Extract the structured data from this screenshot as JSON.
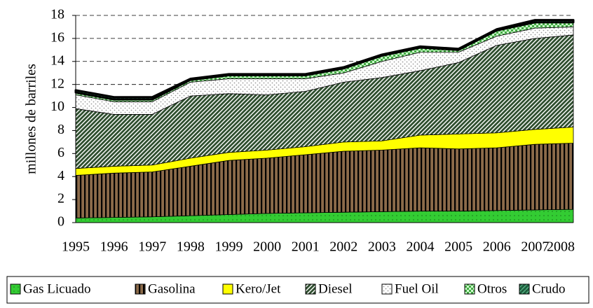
{
  "chart_data": {
    "type": "area",
    "stacked": true,
    "y_axis_label": "millones de barriles",
    "categories": [
      "1995",
      "1996",
      "1997",
      "1998",
      "1999",
      "2000",
      "2001",
      "2002",
      "2003",
      "2004",
      "2005",
      "2006",
      "2007",
      "2008"
    ],
    "ylim": [
      0,
      18
    ],
    "yticks": [
      0,
      2,
      4,
      6,
      8,
      10,
      12,
      14,
      16,
      18
    ],
    "grid": true,
    "legend": "bottom",
    "series": [
      {
        "name": "Gas Licuado",
        "color": "#33cc33",
        "values": [
          0.4,
          0.45,
          0.5,
          0.6,
          0.7,
          0.8,
          0.85,
          0.9,
          0.95,
          1.0,
          1.0,
          1.05,
          1.1,
          1.15
        ]
      },
      {
        "name": "Gasolina",
        "color": "#8c6b4a",
        "values": [
          3.7,
          3.85,
          3.9,
          4.3,
          4.7,
          4.8,
          5.05,
          5.3,
          5.35,
          5.5,
          5.4,
          5.45,
          5.7,
          5.75
        ]
      },
      {
        "name": "Kero/Jet",
        "color": "#ffff00",
        "values": [
          0.6,
          0.6,
          0.6,
          0.7,
          0.7,
          0.7,
          0.7,
          0.8,
          0.8,
          1.1,
          1.3,
          1.3,
          1.3,
          1.4
        ]
      },
      {
        "name": "Diesel",
        "color": "#2f4f2f",
        "values": [
          5.2,
          4.5,
          4.4,
          5.4,
          5.1,
          4.8,
          4.8,
          5.2,
          5.5,
          5.6,
          6.2,
          7.6,
          7.9,
          8.0
        ]
      },
      {
        "name": "Fuel Oil",
        "color": "#ffffff",
        "values": [
          1.2,
          1.1,
          1.1,
          1.2,
          1.3,
          1.4,
          1.1,
          0.8,
          1.4,
          1.6,
          0.9,
          0.8,
          0.9,
          0.7
        ]
      },
      {
        "name": "Otros",
        "color": "#44aa44",
        "values": [
          0.2,
          0.2,
          0.2,
          0.2,
          0.3,
          0.3,
          0.3,
          0.4,
          0.5,
          0.4,
          0.2,
          0.5,
          0.5,
          0.4
        ]
      },
      {
        "name": "Crudo",
        "color": "#1f5f3f",
        "values": [
          0.2,
          0.2,
          0.2,
          0.1,
          0.1,
          0.1,
          0.1,
          0.1,
          0.1,
          0.1,
          0.1,
          0.1,
          0.2,
          0.2
        ]
      }
    ]
  }
}
